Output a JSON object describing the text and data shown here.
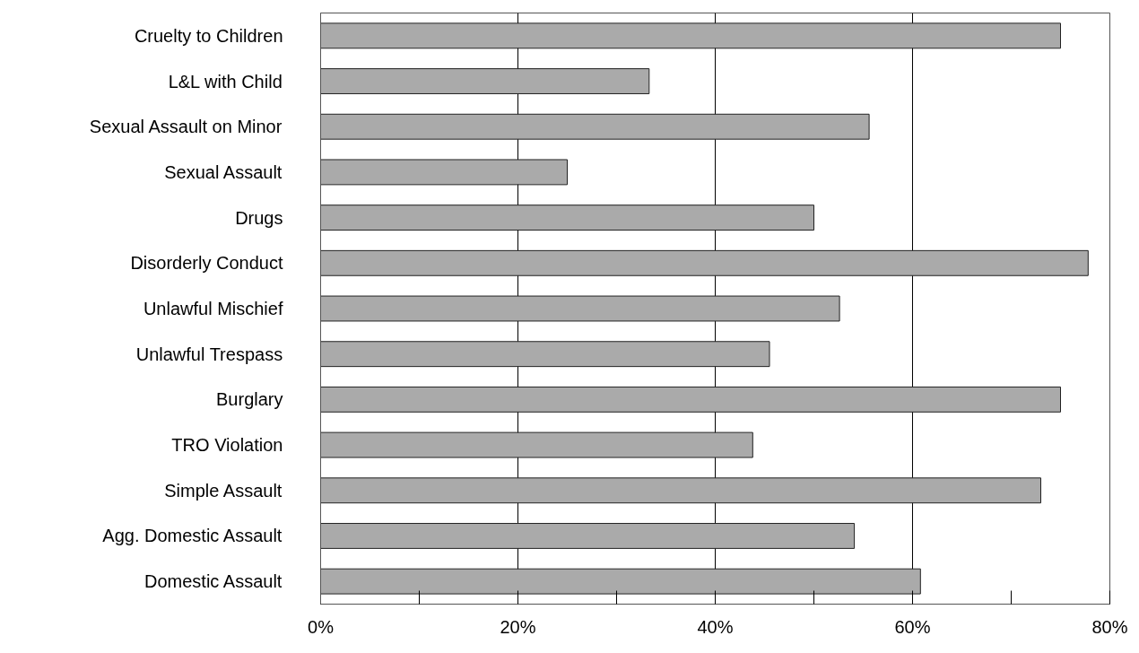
{
  "chart_data": {
    "type": "bar",
    "orientation": "horizontal",
    "categories": [
      "Cruelty to Children",
      "L&L with Child",
      "Sexual Assault on Minor",
      "Sexual Assault",
      "Drugs",
      "Disorderly Conduct",
      "Unlawful Mischief",
      "Unlawful Trespass",
      "Burglary",
      "TRO Violation",
      "Simple Assault",
      "Agg. Domestic Assault",
      "Domestic Assault"
    ],
    "values": [
      75,
      33.3,
      55.6,
      25,
      50,
      77.8,
      52.6,
      45.5,
      75,
      43.8,
      73,
      54.1,
      60.8
    ],
    "color": "#aaaaaa",
    "xlim": [
      0,
      80
    ],
    "xticks": [
      {
        "value": 0,
        "label": "0%"
      },
      {
        "value": 10,
        "label": null
      },
      {
        "value": 20,
        "label": "20%"
      },
      {
        "value": 30,
        "label": null
      },
      {
        "value": 40,
        "label": "40%"
      },
      {
        "value": 50,
        "label": null
      },
      {
        "value": 60,
        "label": "60%"
      },
      {
        "value": 70,
        "label": null
      },
      {
        "value": 80,
        "label": "80%"
      }
    ],
    "grid": "x"
  }
}
